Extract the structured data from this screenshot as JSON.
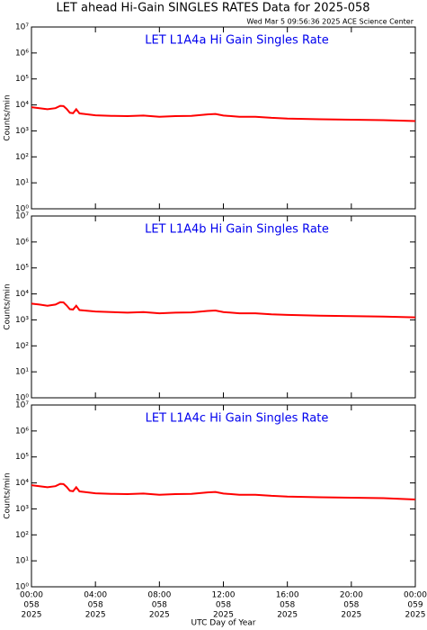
{
  "title": "LET ahead Hi-Gain SINGLES RATES Data for 2025-058",
  "timestamp": "Wed Mar  5 09:56:36 2025 ACE Science Center",
  "chart_data": [
    {
      "type": "line",
      "title": "LET L1A4a Hi Gain Singles Rate",
      "ylabel": "Counts/min",
      "log_scale": true,
      "grid": false,
      "xlim": [
        0,
        24
      ],
      "ylim": [
        1,
        10000000
      ],
      "yticks": [
        {
          "value": 1,
          "label": "10⁰"
        },
        {
          "value": 10,
          "label": "10¹"
        },
        {
          "value": 100,
          "label": "10²"
        },
        {
          "value": 1000,
          "label": "10³"
        },
        {
          "value": 10000,
          "label": "10⁴"
        },
        {
          "value": 100000,
          "label": "10⁵"
        },
        {
          "value": 1000000,
          "label": "10⁶"
        },
        {
          "value": 10000000,
          "label": "10⁷"
        }
      ],
      "x": [
        0,
        0.5,
        1,
        1.5,
        1.8,
        2,
        2.2,
        2.4,
        2.6,
        2.8,
        3,
        3.3,
        4,
        5,
        6,
        7,
        8,
        9,
        10,
        11,
        11.5,
        12,
        13,
        14,
        15,
        16,
        18,
        20,
        22,
        24
      ],
      "series": [
        {
          "color": "#ff0000",
          "values": [
            8200,
            7500,
            6800,
            7500,
            9200,
            9000,
            7000,
            5000,
            4800,
            6800,
            4700,
            4500,
            4000,
            3800,
            3700,
            3900,
            3500,
            3700,
            3800,
            4300,
            4500,
            3900,
            3500,
            3500,
            3200,
            3000,
            2800,
            2700,
            2600,
            2400
          ]
        }
      ]
    },
    {
      "type": "line",
      "title": "LET L1A4b Hi Gain Singles Rate",
      "ylabel": "Counts/min",
      "log_scale": true,
      "grid": false,
      "xlim": [
        0,
        24
      ],
      "ylim": [
        1,
        10000000
      ],
      "yticks": [
        {
          "value": 1,
          "label": "10⁰"
        },
        {
          "value": 10,
          "label": "10¹"
        },
        {
          "value": 100,
          "label": "10²"
        },
        {
          "value": 1000,
          "label": "10³"
        },
        {
          "value": 10000,
          "label": "10⁴"
        },
        {
          "value": 100000,
          "label": "10⁵"
        },
        {
          "value": 1000000,
          "label": "10⁶"
        },
        {
          "value": 10000000,
          "label": "10⁷"
        }
      ],
      "x": [
        0,
        0.5,
        1,
        1.5,
        1.8,
        2,
        2.2,
        2.4,
        2.6,
        2.8,
        3,
        3.3,
        4,
        5,
        6,
        7,
        8,
        9,
        10,
        11,
        11.5,
        12,
        13,
        14,
        15,
        16,
        18,
        20,
        22,
        24
      ],
      "series": [
        {
          "color": "#ff0000",
          "values": [
            4200,
            3900,
            3500,
            3900,
            4800,
            4700,
            3600,
            2600,
            2500,
            3500,
            2400,
            2300,
            2100,
            2000,
            1900,
            2000,
            1800,
            1900,
            1950,
            2200,
            2300,
            2000,
            1800,
            1800,
            1650,
            1550,
            1450,
            1400,
            1350,
            1250
          ]
        }
      ]
    },
    {
      "type": "line",
      "title": "LET L1A4c Hi Gain Singles Rate",
      "ylabel": "Counts/min",
      "xlabel": "UTC Day of Year",
      "log_scale": true,
      "grid": false,
      "xlim": [
        0,
        24
      ],
      "ylim": [
        1,
        10000000
      ],
      "yticks": [
        {
          "value": 1,
          "label": "10⁰"
        },
        {
          "value": 10,
          "label": "10¹"
        },
        {
          "value": 100,
          "label": "10²"
        },
        {
          "value": 1000,
          "label": "10³"
        },
        {
          "value": 10000,
          "label": "10⁴"
        },
        {
          "value": 100000,
          "label": "10⁵"
        },
        {
          "value": 1000000,
          "label": "10⁶"
        },
        {
          "value": 10000000,
          "label": "10⁷"
        }
      ],
      "xticks": [
        {
          "value": 0,
          "label": [
            "00:00",
            "058",
            "2025"
          ]
        },
        {
          "value": 4,
          "label": [
            "04:00",
            "058",
            "2025"
          ]
        },
        {
          "value": 8,
          "label": [
            "08:00",
            "058",
            "2025"
          ]
        },
        {
          "value": 12,
          "label": [
            "12:00",
            "058",
            "2025"
          ]
        },
        {
          "value": 16,
          "label": [
            "16:00",
            "058",
            "2025"
          ]
        },
        {
          "value": 20,
          "label": [
            "20:00",
            "058",
            "2025"
          ]
        },
        {
          "value": 24,
          "label": [
            "00:00",
            "059",
            "2025"
          ]
        }
      ],
      "x": [
        0,
        0.5,
        1,
        1.5,
        1.8,
        2,
        2.2,
        2.4,
        2.6,
        2.8,
        3,
        3.3,
        4,
        5,
        6,
        7,
        8,
        9,
        10,
        11,
        11.5,
        12,
        13,
        14,
        15,
        16,
        18,
        20,
        22,
        24
      ],
      "series": [
        {
          "color": "#ff0000",
          "values": [
            8200,
            7500,
            6800,
            7500,
            9200,
            9000,
            7000,
            5000,
            4800,
            6800,
            4700,
            4500,
            4000,
            3800,
            3700,
            3900,
            3500,
            3700,
            3800,
            4300,
            4500,
            3900,
            3500,
            3500,
            3200,
            3000,
            2800,
            2700,
            2600,
            2300
          ]
        }
      ]
    }
  ]
}
